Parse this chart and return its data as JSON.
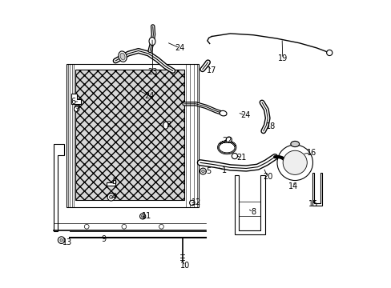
{
  "bg_color": "#ffffff",
  "line_color": "#000000",
  "fig_width": 4.89,
  "fig_height": 3.6,
  "dpi": 100,
  "font_size": 7
}
